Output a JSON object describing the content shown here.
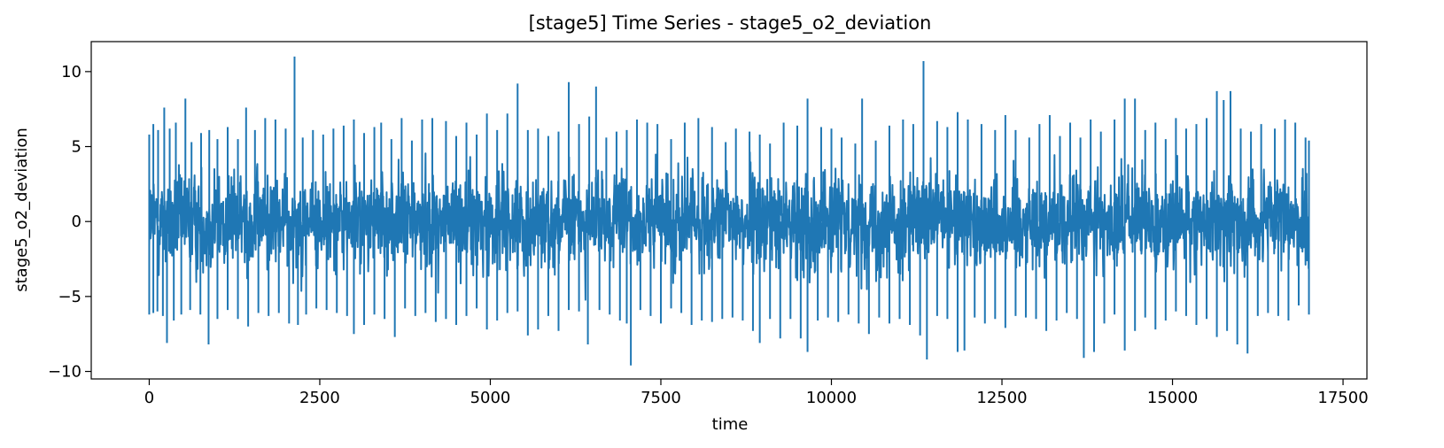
{
  "chart_data": {
    "type": "line",
    "title": "[stage5] Time Series - stage5_o2_deviation",
    "xlabel": "time",
    "ylabel": "stage5_o2_deviation",
    "xlim": [
      -850,
      17850
    ],
    "ylim": [
      -10.5,
      12
    ],
    "grid": false,
    "x_ticks": [
      0,
      2500,
      5000,
      7500,
      10000,
      12500,
      15000,
      17500
    ],
    "x_tick_labels": [
      "0",
      "2500",
      "5000",
      "7500",
      "10000",
      "12500",
      "15000",
      "17500"
    ],
    "y_ticks": [
      -10,
      -5,
      0,
      5,
      10
    ],
    "y_tick_labels": [
      "−10",
      "−5",
      "0",
      "5",
      "10"
    ],
    "series": [
      {
        "color": "#1f77b4",
        "x_start": 0,
        "x_end": 17000,
        "n_points": 17000,
        "typical_band": [
          -4.5,
          4.5
        ],
        "envelope_top": [
          [
            0,
            5.8
          ],
          [
            60,
            6.5
          ],
          [
            130,
            6.1
          ],
          [
            220,
            7.6
          ],
          [
            300,
            6.2
          ],
          [
            390,
            6.6
          ],
          [
            530,
            8.2
          ],
          [
            620,
            5.3
          ],
          [
            760,
            5.9
          ],
          [
            880,
            6.1
          ],
          [
            1000,
            5.5
          ],
          [
            1150,
            6.3
          ],
          [
            1300,
            5.5
          ],
          [
            1420,
            7.6
          ],
          [
            1550,
            6.1
          ],
          [
            1700,
            6.9
          ],
          [
            1850,
            6.8
          ],
          [
            2000,
            6.2
          ],
          [
            2130,
            11.0
          ],
          [
            2250,
            5.6
          ],
          [
            2400,
            6.1
          ],
          [
            2550,
            5.8
          ],
          [
            2700,
            6.2
          ],
          [
            2850,
            6.4
          ],
          [
            3000,
            6.8
          ],
          [
            3150,
            5.9
          ],
          [
            3300,
            6.3
          ],
          [
            3400,
            6.6
          ],
          [
            3550,
            5.5
          ],
          [
            3700,
            6.9
          ],
          [
            3850,
            5.4
          ],
          [
            4000,
            6.8
          ],
          [
            4150,
            6.9
          ],
          [
            4350,
            6.7
          ],
          [
            4500,
            5.7
          ],
          [
            4650,
            6.6
          ],
          [
            4800,
            5.8
          ],
          [
            4950,
            7.2
          ],
          [
            5100,
            6.1
          ],
          [
            5250,
            7.2
          ],
          [
            5400,
            9.2
          ],
          [
            5550,
            6.1
          ],
          [
            5700,
            6.2
          ],
          [
            5850,
            5.7
          ],
          [
            6000,
            6.0
          ],
          [
            6150,
            9.3
          ],
          [
            6300,
            6.5
          ],
          [
            6450,
            7.0
          ],
          [
            6550,
            9.0
          ],
          [
            6700,
            5.6
          ],
          [
            6850,
            6.0
          ],
          [
            7000,
            6.1
          ],
          [
            7150,
            6.8
          ],
          [
            7300,
            6.6
          ],
          [
            7450,
            6.5
          ],
          [
            7650,
            5.5
          ],
          [
            7850,
            6.6
          ],
          [
            8050,
            6.9
          ],
          [
            8250,
            6.3
          ],
          [
            8450,
            5.3
          ],
          [
            8600,
            6.2
          ],
          [
            8800,
            6.0
          ],
          [
            8950,
            5.8
          ],
          [
            9100,
            5.2
          ],
          [
            9300,
            6.6
          ],
          [
            9500,
            6.4
          ],
          [
            9650,
            8.2
          ],
          [
            9850,
            6.3
          ],
          [
            10000,
            6.2
          ],
          [
            10150,
            5.6
          ],
          [
            10350,
            5.2
          ],
          [
            10450,
            8.2
          ],
          [
            10650,
            5.4
          ],
          [
            10850,
            6.4
          ],
          [
            11050,
            6.8
          ],
          [
            11200,
            6.5
          ],
          [
            11350,
            10.7
          ],
          [
            11550,
            6.7
          ],
          [
            11700,
            6.3
          ],
          [
            11850,
            7.3
          ],
          [
            12000,
            6.8
          ],
          [
            12200,
            6.5
          ],
          [
            12400,
            6.1
          ],
          [
            12550,
            7.1
          ],
          [
            12700,
            6.1
          ],
          [
            12900,
            5.6
          ],
          [
            13050,
            6.5
          ],
          [
            13200,
            7.1
          ],
          [
            13350,
            5.7
          ],
          [
            13500,
            6.6
          ],
          [
            13650,
            5.6
          ],
          [
            13800,
            6.8
          ],
          [
            13950,
            6.0
          ],
          [
            14150,
            6.8
          ],
          [
            14300,
            8.2
          ],
          [
            14450,
            8.2
          ],
          [
            14600,
            6.1
          ],
          [
            14750,
            6.6
          ],
          [
            14900,
            5.5
          ],
          [
            15050,
            6.9
          ],
          [
            15200,
            6.2
          ],
          [
            15350,
            6.5
          ],
          [
            15500,
            6.9
          ],
          [
            15650,
            8.7
          ],
          [
            15750,
            8.1
          ],
          [
            15850,
            8.7
          ],
          [
            16000,
            6.2
          ],
          [
            16150,
            6.0
          ],
          [
            16300,
            6.5
          ],
          [
            16500,
            6.2
          ],
          [
            16650,
            6.8
          ],
          [
            16800,
            6.6
          ],
          [
            16950,
            5.6
          ],
          [
            17000,
            5.4
          ]
        ],
        "envelope_bottom": [
          [
            0,
            -6.2
          ],
          [
            60,
            -6.1
          ],
          [
            120,
            -6.0
          ],
          [
            200,
            -6.3
          ],
          [
            260,
            -8.1
          ],
          [
            360,
            -6.6
          ],
          [
            470,
            -6.2
          ],
          [
            600,
            -5.9
          ],
          [
            750,
            -6.2
          ],
          [
            870,
            -8.2
          ],
          [
            1000,
            -6.5
          ],
          [
            1150,
            -5.9
          ],
          [
            1300,
            -6.5
          ],
          [
            1450,
            -7.0
          ],
          [
            1600,
            -6.1
          ],
          [
            1750,
            -6.3
          ],
          [
            1900,
            -6.1
          ],
          [
            2050,
            -6.8
          ],
          [
            2180,
            -6.9
          ],
          [
            2300,
            -6.2
          ],
          [
            2450,
            -5.8
          ],
          [
            2600,
            -5.9
          ],
          [
            2750,
            -6.1
          ],
          [
            2900,
            -6.3
          ],
          [
            3000,
            -7.5
          ],
          [
            3150,
            -6.9
          ],
          [
            3300,
            -6.2
          ],
          [
            3450,
            -6.5
          ],
          [
            3600,
            -7.7
          ],
          [
            3750,
            -5.8
          ],
          [
            3900,
            -6.3
          ],
          [
            4050,
            -6.1
          ],
          [
            4200,
            -6.7
          ],
          [
            4350,
            -6.5
          ],
          [
            4500,
            -6.9
          ],
          [
            4650,
            -6.3
          ],
          [
            4800,
            -5.8
          ],
          [
            4950,
            -7.2
          ],
          [
            5100,
            -6.6
          ],
          [
            5250,
            -6.1
          ],
          [
            5400,
            -6.0
          ],
          [
            5550,
            -7.6
          ],
          [
            5700,
            -7.2
          ],
          [
            5850,
            -6.3
          ],
          [
            6000,
            -7.3
          ],
          [
            6150,
            -5.9
          ],
          [
            6300,
            -6.0
          ],
          [
            6430,
            -8.2
          ],
          [
            6600,
            -5.9
          ],
          [
            6750,
            -6.2
          ],
          [
            6900,
            -6.6
          ],
          [
            7000,
            -6.8
          ],
          [
            7060,
            -9.6
          ],
          [
            7200,
            -5.9
          ],
          [
            7350,
            -6.3
          ],
          [
            7500,
            -6.8
          ],
          [
            7650,
            -5.8
          ],
          [
            7800,
            -6.1
          ],
          [
            7950,
            -6.9
          ],
          [
            8100,
            -6.6
          ],
          [
            8250,
            -6.7
          ],
          [
            8400,
            -6.5
          ],
          [
            8550,
            -6.4
          ],
          [
            8700,
            -6.6
          ],
          [
            8850,
            -7.3
          ],
          [
            8950,
            -8.1
          ],
          [
            9100,
            -6.5
          ],
          [
            9250,
            -7.8
          ],
          [
            9400,
            -6.5
          ],
          [
            9550,
            -7.8
          ],
          [
            9650,
            -8.7
          ],
          [
            9800,
            -6.6
          ],
          [
            9950,
            -6.4
          ],
          [
            10100,
            -6.7
          ],
          [
            10250,
            -6.2
          ],
          [
            10400,
            -6.8
          ],
          [
            10550,
            -7.5
          ],
          [
            10700,
            -6.4
          ],
          [
            10850,
            -6.8
          ],
          [
            11000,
            -6.5
          ],
          [
            11150,
            -6.9
          ],
          [
            11300,
            -7.6
          ],
          [
            11400,
            -9.2
          ],
          [
            11550,
            -6.3
          ],
          [
            11700,
            -6.5
          ],
          [
            11850,
            -8.7
          ],
          [
            11950,
            -8.6
          ],
          [
            12100,
            -6.4
          ],
          [
            12250,
            -6.8
          ],
          [
            12400,
            -6.5
          ],
          [
            12550,
            -7.1
          ],
          [
            12700,
            -6.3
          ],
          [
            12850,
            -6.4
          ],
          [
            13000,
            -6.5
          ],
          [
            13150,
            -7.3
          ],
          [
            13300,
            -6.6
          ],
          [
            13450,
            -6.1
          ],
          [
            13600,
            -6.5
          ],
          [
            13700,
            -9.1
          ],
          [
            13850,
            -8.7
          ],
          [
            14000,
            -6.8
          ],
          [
            14150,
            -6.2
          ],
          [
            14300,
            -8.6
          ],
          [
            14450,
            -7.3
          ],
          [
            14600,
            -6.4
          ],
          [
            14750,
            -7.2
          ],
          [
            14900,
            -6.6
          ],
          [
            15050,
            -6.0
          ],
          [
            15200,
            -6.3
          ],
          [
            15350,
            -6.9
          ],
          [
            15500,
            -6.5
          ],
          [
            15650,
            -7.7
          ],
          [
            15800,
            -7.3
          ],
          [
            15950,
            -8.2
          ],
          [
            16100,
            -8.8
          ],
          [
            16250,
            -6.3
          ],
          [
            16400,
            -6.1
          ],
          [
            16550,
            -6.3
          ],
          [
            16700,
            -6.6
          ],
          [
            16850,
            -5.6
          ],
          [
            17000,
            -6.2
          ]
        ]
      }
    ]
  }
}
